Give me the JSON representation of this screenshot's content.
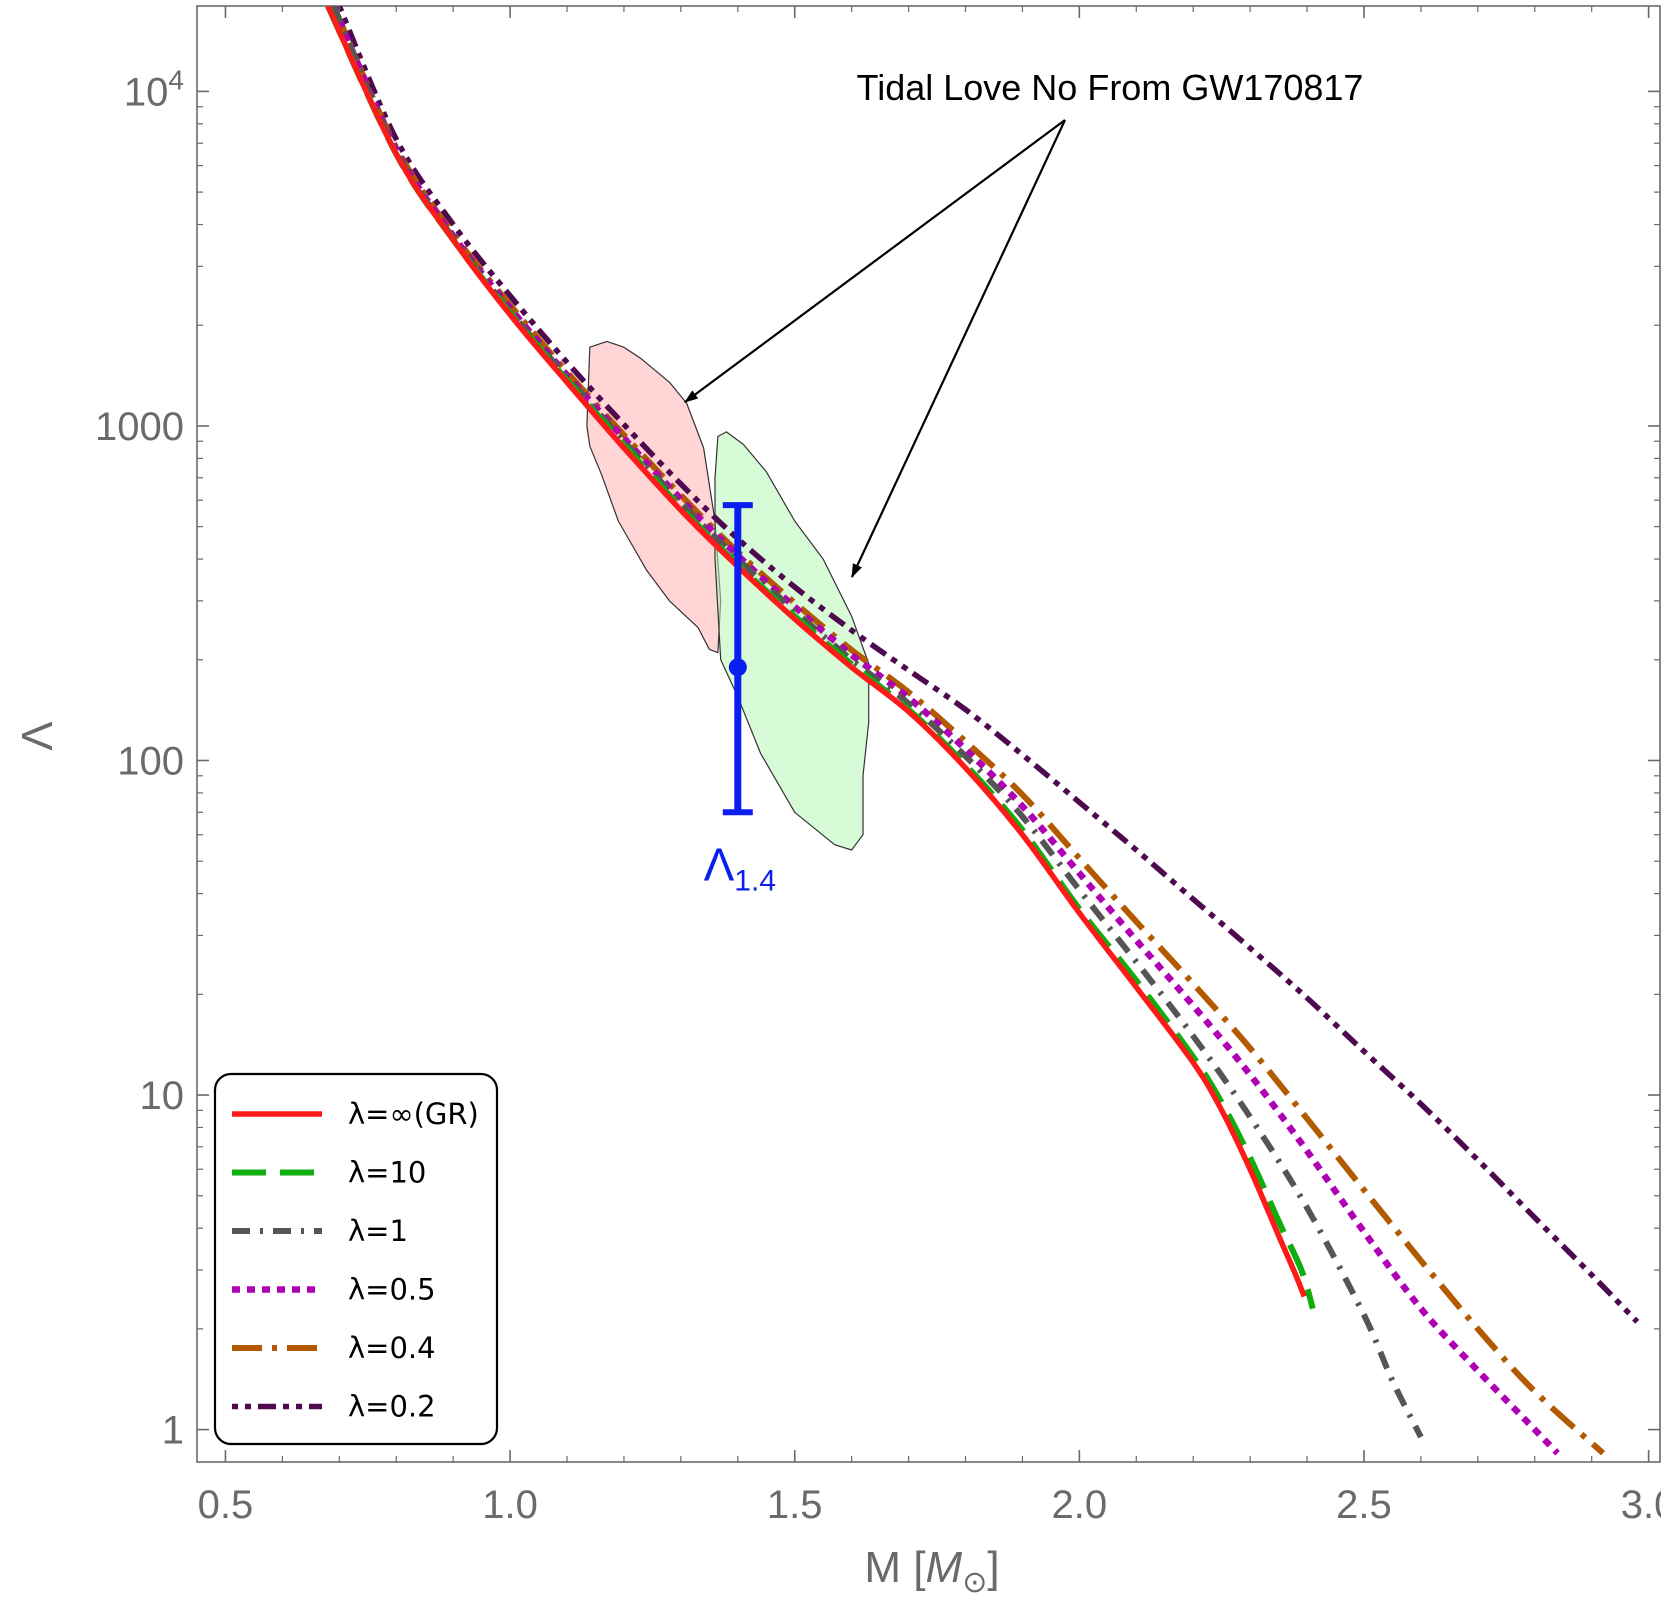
{
  "chart_data": {
    "type": "line",
    "xlabel": {
      "main": "M [",
      "sym": "M",
      "sub": "⊙",
      "close": "]"
    },
    "ylabel": "Λ",
    "xlim": [
      0.45,
      3.02
    ],
    "ylim": [
      0.8,
      18000
    ],
    "yscale": "log",
    "x_ticks": [
      {
        "value": 0.5,
        "label": "0.5"
      },
      {
        "value": 1.0,
        "label": "1.0"
      },
      {
        "value": 1.5,
        "label": "1.5"
      },
      {
        "value": 2.0,
        "label": "2.0"
      },
      {
        "value": 2.5,
        "label": "2.5"
      },
      {
        "value": 3.0,
        "label": "3.0"
      }
    ],
    "y_ticks": [
      {
        "value": 1,
        "label": "1"
      },
      {
        "value": 10,
        "label": "10"
      },
      {
        "value": 100,
        "label": "100"
      },
      {
        "value": 1000,
        "label": "1000"
      },
      {
        "value": 10000,
        "label": "10",
        "exp": "4"
      }
    ],
    "grid": false,
    "legend": {
      "placement": "bottom-left",
      "entries": [
        {
          "label": "λ=∞(GR)",
          "color": "#ff1a1a",
          "dash": "solid"
        },
        {
          "label": "λ=10",
          "color": "#0fae0f",
          "dash": "dashed"
        },
        {
          "label": "λ=1",
          "color": "#555555",
          "dash": "dash-dot"
        },
        {
          "label": "λ=0.5",
          "color": "#b000b4",
          "dash": "dotted"
        },
        {
          "label": "λ=0.4",
          "color": "#b35a00",
          "dash": "long-dash-dot"
        },
        {
          "label": "λ=0.2",
          "color": "#4f0a4f",
          "dash": "dot-dot-dash"
        }
      ]
    },
    "series": [
      {
        "name": "λ=∞(GR)",
        "color": "#ff1a1a",
        "x": [
          0.68,
          0.8,
          0.9,
          1.0,
          1.1,
          1.2,
          1.3,
          1.4,
          1.5,
          1.6,
          1.7,
          1.8,
          1.9,
          2.0,
          2.1,
          2.2,
          2.25,
          2.3,
          2.35,
          2.38,
          2.395
        ],
        "y": [
          18000,
          6500,
          3600,
          2150,
          1350,
          860,
          560,
          380,
          265,
          190,
          140,
          95,
          60,
          35,
          21,
          12.5,
          9,
          6,
          3.8,
          2.9,
          2.5
        ]
      },
      {
        "name": "λ=10",
        "color": "#0fae0f",
        "x": [
          0.68,
          0.8,
          0.9,
          1.0,
          1.1,
          1.2,
          1.3,
          1.4,
          1.5,
          1.6,
          1.7,
          1.8,
          1.9,
          2.0,
          2.1,
          2.2,
          2.25,
          2.3,
          2.35,
          2.39,
          2.41
        ],
        "y": [
          18000,
          6500,
          3600,
          2180,
          1370,
          880,
          570,
          385,
          270,
          194,
          142,
          97,
          62,
          36,
          22,
          13,
          9.5,
          6.5,
          4.2,
          3.0,
          2.3
        ]
      },
      {
        "name": "λ=1",
        "color": "#555555",
        "x": [
          0.69,
          0.8,
          0.9,
          1.0,
          1.1,
          1.2,
          1.3,
          1.4,
          1.5,
          1.6,
          1.7,
          1.8,
          1.9,
          2.0,
          2.1,
          2.2,
          2.3,
          2.4,
          2.5,
          2.55,
          2.6
        ],
        "y": [
          18000,
          6600,
          3650,
          2200,
          1400,
          900,
          590,
          400,
          280,
          200,
          148,
          103,
          68,
          41,
          25,
          15,
          8.6,
          4.6,
          2.2,
          1.4,
          0.95
        ]
      },
      {
        "name": "λ=0.5",
        "color": "#b000b4",
        "x": [
          0.69,
          0.8,
          0.9,
          1.0,
          1.1,
          1.2,
          1.3,
          1.4,
          1.5,
          1.6,
          1.7,
          1.8,
          1.9,
          2.0,
          2.1,
          2.2,
          2.3,
          2.4,
          2.5,
          2.6,
          2.7,
          2.8,
          2.84
        ],
        "y": [
          18000,
          6700,
          3700,
          2250,
          1420,
          920,
          605,
          410,
          288,
          207,
          154,
          108,
          73,
          46,
          29,
          18.5,
          11.5,
          6.8,
          3.9,
          2.3,
          1.5,
          1.0,
          0.85
        ]
      },
      {
        "name": "λ=0.4",
        "color": "#b35a00",
        "x": [
          0.69,
          0.8,
          0.9,
          1.0,
          1.1,
          1.2,
          1.3,
          1.4,
          1.5,
          1.6,
          1.7,
          1.8,
          1.9,
          2.0,
          2.1,
          2.2,
          2.3,
          2.4,
          2.5,
          2.6,
          2.7,
          2.8,
          2.92
        ],
        "y": [
          18000,
          6800,
          3750,
          2300,
          1450,
          940,
          620,
          420,
          296,
          214,
          160,
          114,
          79,
          51,
          33,
          21.5,
          13.8,
          8.5,
          5.2,
          3.2,
          2.0,
          1.3,
          0.85
        ]
      },
      {
        "name": "λ=0.2",
        "color": "#4f0a4f",
        "x": [
          0.7,
          0.8,
          0.9,
          1.0,
          1.1,
          1.2,
          1.3,
          1.4,
          1.5,
          1.6,
          1.7,
          1.8,
          1.9,
          2.0,
          2.1,
          2.2,
          2.3,
          2.4,
          2.5,
          2.6,
          2.7,
          2.8,
          2.9,
          2.98
        ],
        "y": [
          18000,
          7200,
          4000,
          2450,
          1550,
          1010,
          670,
          460,
          330,
          245,
          186,
          142,
          104,
          75,
          54,
          38.5,
          27.5,
          19.5,
          13.5,
          9.4,
          6.4,
          4.3,
          2.9,
          2.1
        ]
      }
    ],
    "regions": [
      {
        "color": "#ffb3b3",
        "points": [
          [
            1.14,
            1720
          ],
          [
            1.17,
            1790
          ],
          [
            1.2,
            1720
          ],
          [
            1.23,
            1590
          ],
          [
            1.28,
            1350
          ],
          [
            1.31,
            1170
          ],
          [
            1.34,
            860
          ],
          [
            1.36,
            520
          ],
          [
            1.37,
            300
          ],
          [
            1.365,
            210
          ],
          [
            1.35,
            215
          ],
          [
            1.33,
            250
          ],
          [
            1.28,
            300
          ],
          [
            1.24,
            370
          ],
          [
            1.19,
            520
          ],
          [
            1.16,
            720
          ],
          [
            1.14,
            870
          ],
          [
            1.135,
            1000
          ]
        ]
      },
      {
        "color": "#b6f5b6",
        "points": [
          [
            1.365,
            930
          ],
          [
            1.38,
            960
          ],
          [
            1.41,
            880
          ],
          [
            1.45,
            730
          ],
          [
            1.5,
            520
          ],
          [
            1.55,
            400
          ],
          [
            1.6,
            270
          ],
          [
            1.63,
            195
          ],
          [
            1.63,
            130
          ],
          [
            1.62,
            90
          ],
          [
            1.62,
            60
          ],
          [
            1.6,
            54
          ],
          [
            1.57,
            56
          ],
          [
            1.5,
            70
          ],
          [
            1.44,
            105
          ],
          [
            1.4,
            155
          ],
          [
            1.37,
            200
          ],
          [
            1.36,
            400
          ],
          [
            1.36,
            700
          ]
        ]
      }
    ],
    "errorbar": {
      "x": 1.4,
      "y": 190,
      "low": 70,
      "high": 580,
      "label": "Λ",
      "label_sub": "1.4",
      "color": "#0a1ef0"
    },
    "annotation": {
      "text": "Tidal Love No From GW170817",
      "tip_x": "1.3",
      "tip_y": 1100,
      "tip2_x": "1.59",
      "tip2_y": 330
    }
  }
}
